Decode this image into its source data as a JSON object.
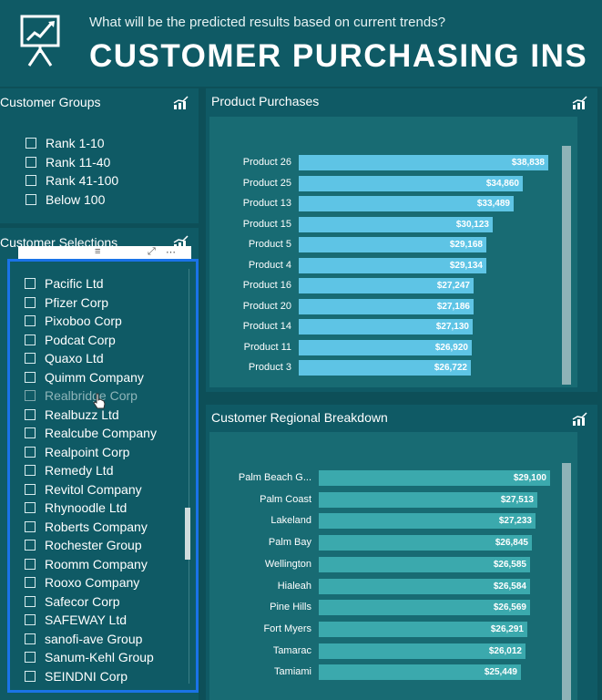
{
  "header": {
    "subtitle": "What will be the predicted results based on current trends?",
    "title": "CUSTOMER PURCHASING INS"
  },
  "customer_groups": {
    "title": "Customer Groups",
    "items": [
      "Rank 1-10",
      "Rank 11-40",
      "Rank 41-100",
      "Below 100"
    ]
  },
  "customer_selections": {
    "title": "Customer Selections",
    "items": [
      "Pacific Ltd",
      "Pfizer Corp",
      "Pixoboo Corp",
      "Podcat Corp",
      "Quaxo Ltd",
      "Quimm Company",
      "Realbridge Corp",
      "Realbuzz Ltd",
      "Realcube Company",
      "Realpoint Corp",
      "Remedy Ltd",
      "Revitol Company",
      "Rhynoodle Ltd",
      "Roberts Company",
      "Rochester Group",
      "Roomm Company",
      "Rooxo Company",
      "Safecor Corp",
      "SAFEWAY Ltd",
      "sanofi-ave Group",
      "Sanum-Kehl Group",
      "SEINDNI Corp"
    ]
  },
  "product_purchases": {
    "title": "Product Purchases",
    "bar_color": "#5ec4e5",
    "labels": [
      "Product 26",
      "Product 25",
      "Product 13",
      "Product 15",
      "Product 5",
      "Product 4",
      "Product 16",
      "Product 20",
      "Product 14",
      "Product 11",
      "Product 3"
    ],
    "value_labels": [
      "$38,838",
      "$34,860",
      "$33,489",
      "$30,123",
      "$29,168",
      "$29,134",
      "$27,247",
      "$27,186",
      "$27,130",
      "$26,920",
      "$26,722"
    ],
    "values": [
      38838,
      34860,
      33489,
      30123,
      29168,
      29134,
      27247,
      27186,
      27130,
      26920,
      26722
    ]
  },
  "regional_breakdown": {
    "title": "Customer Regional Breakdown",
    "bar_color": "#3ba9ad",
    "labels": [
      "Palm Beach G...",
      "Palm Coast",
      "Lakeland",
      "Palm Bay",
      "Wellington",
      "Hialeah",
      "Pine Hills",
      "Fort Myers",
      "Tamarac",
      "Tamiami"
    ],
    "value_labels": [
      "$29,100",
      "$27,513",
      "$27,233",
      "$26,845",
      "$26,585",
      "$26,584",
      "$26,569",
      "$26,291",
      "$26,012",
      "$25,449"
    ],
    "values": [
      29100,
      27513,
      27233,
      26845,
      26585,
      26584,
      26569,
      26291,
      26012,
      25449
    ]
  }
}
